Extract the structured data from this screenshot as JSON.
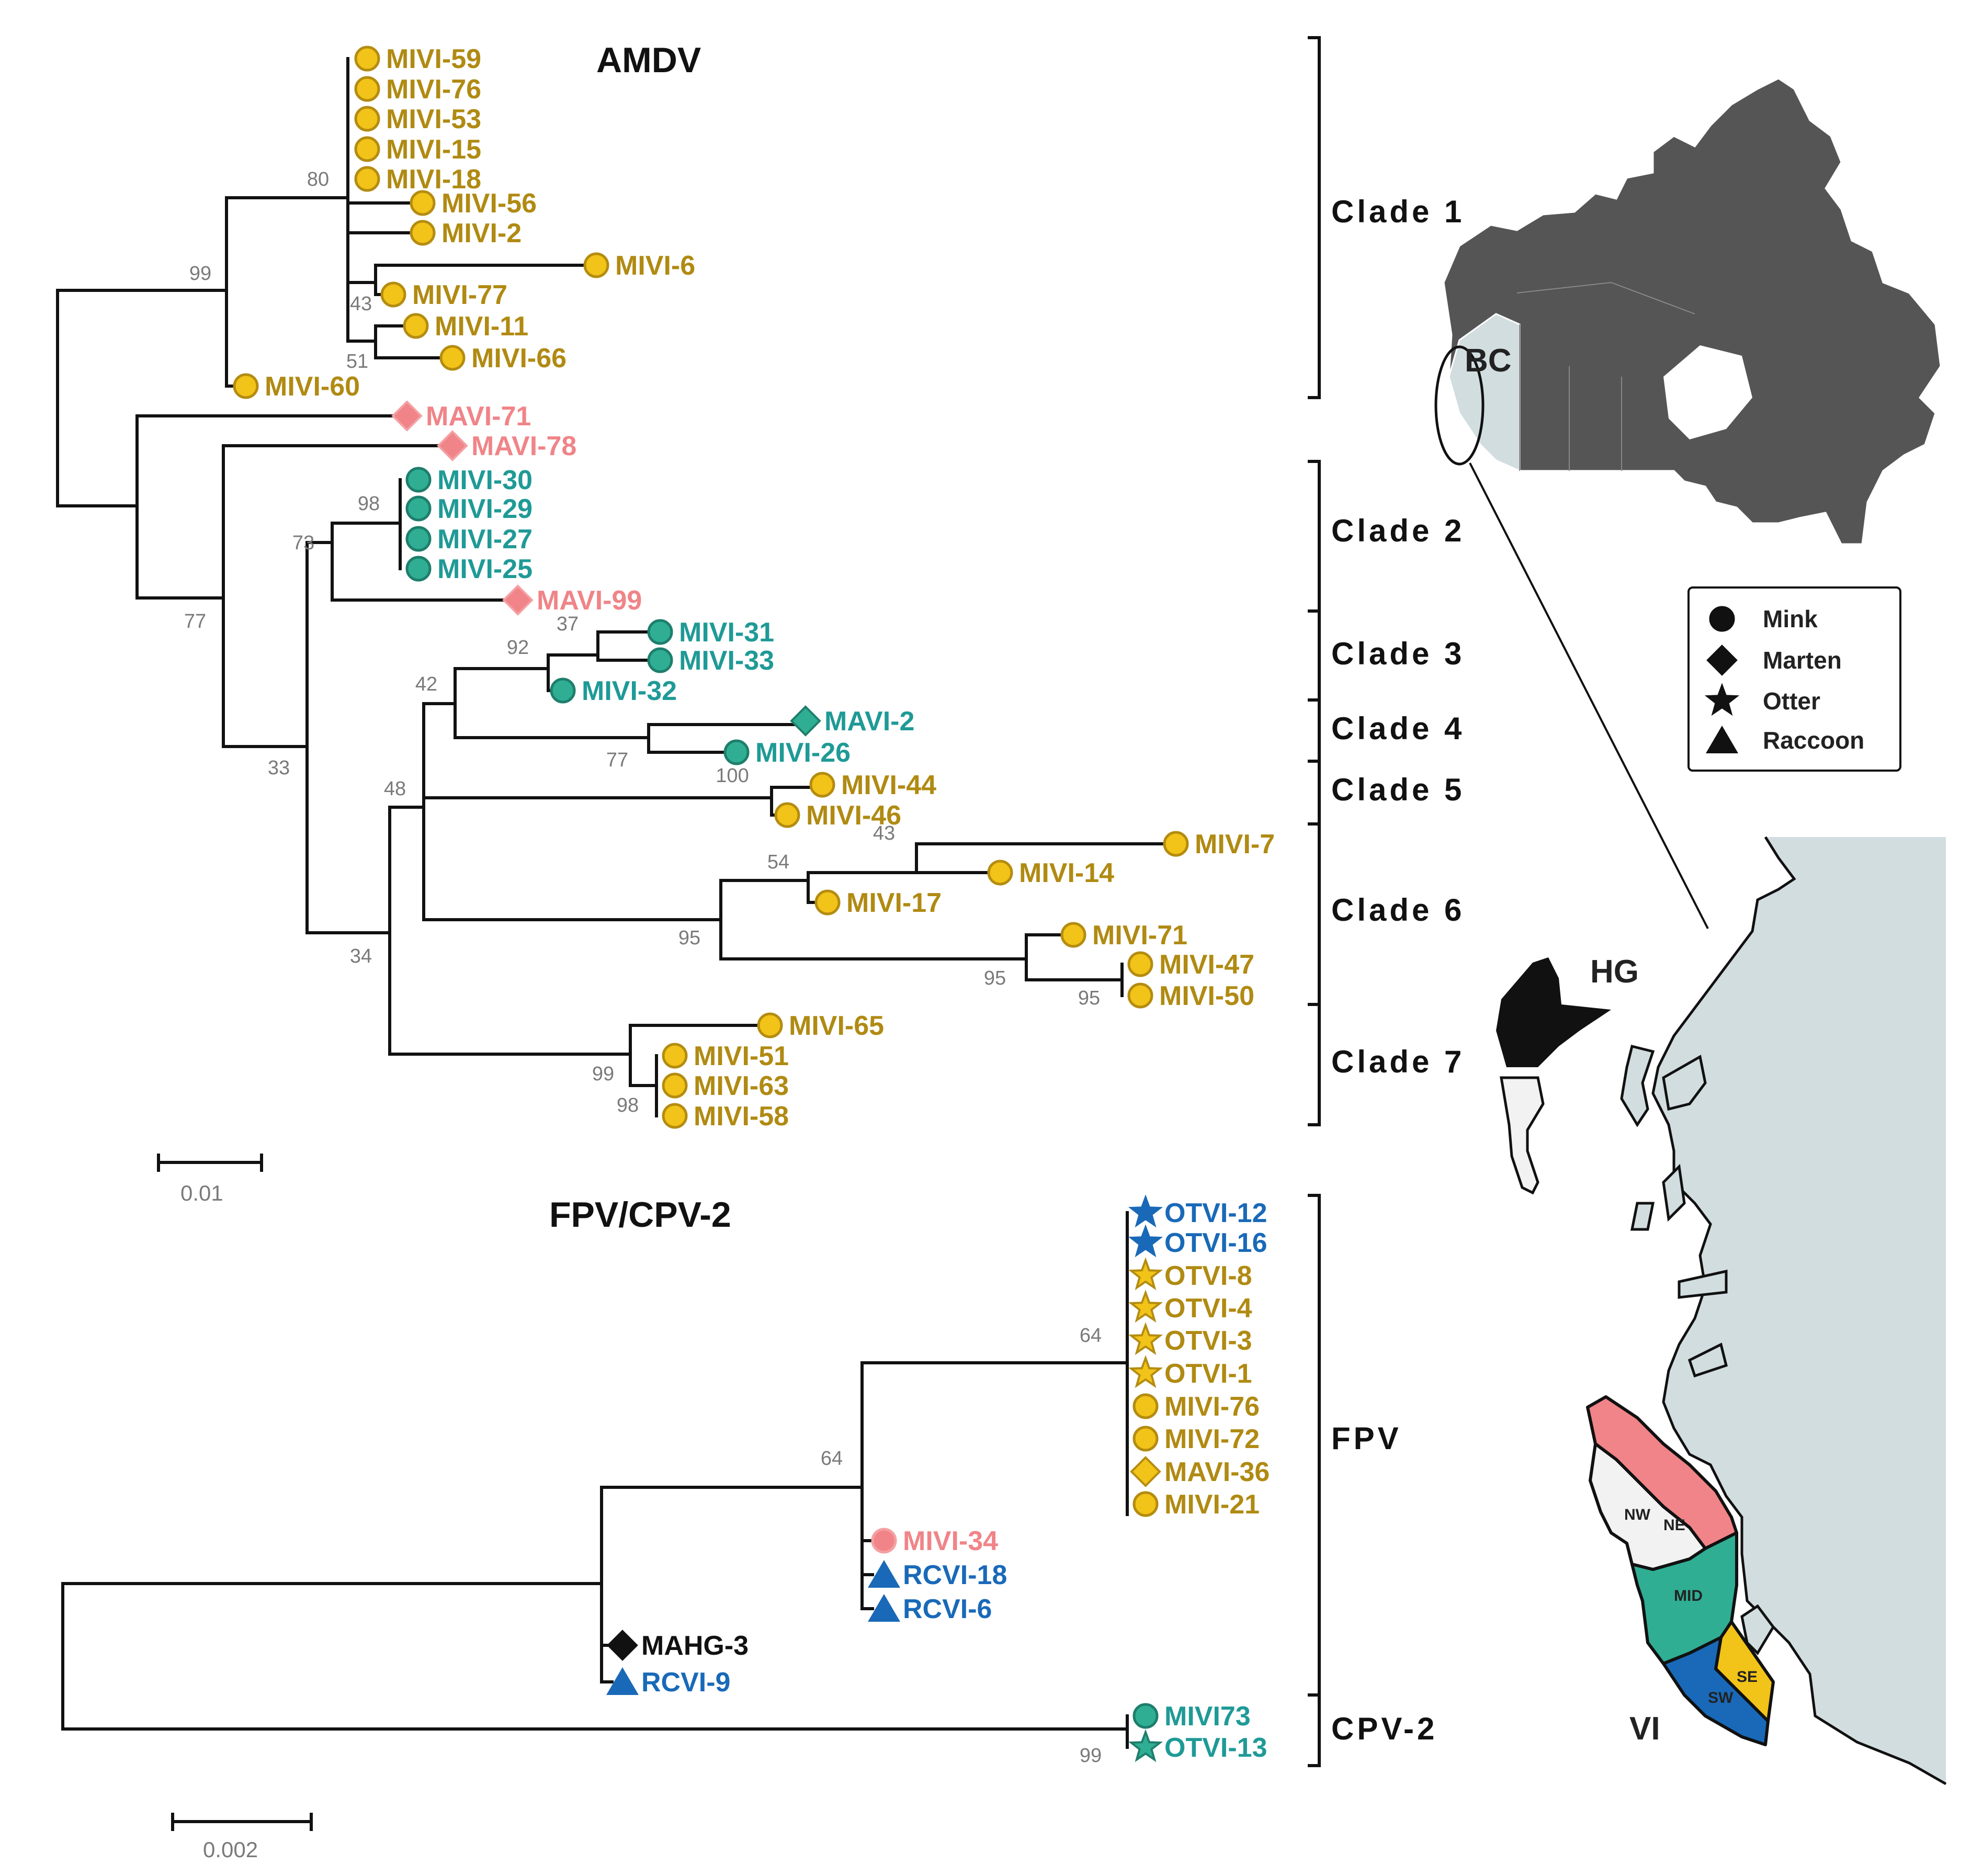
{
  "colors": {
    "yellow": "#f2c318",
    "yellow_text": "#b08a12",
    "teal": "#2fae94",
    "teal_text": "#1f9a96",
    "pink": "#f08488",
    "blue": "#1969b8",
    "black": "#111111",
    "sea": "#d2dde0",
    "land_dark": "#555555",
    "bc_light": "#d2dde0"
  },
  "amdv": {
    "title": "AMDV",
    "scale_label": "0.01",
    "tips": [
      {
        "label": "MIVI-59",
        "shape": "circle",
        "color": "yellow"
      },
      {
        "label": "MIVI-76",
        "shape": "circle",
        "color": "yellow"
      },
      {
        "label": "MIVI-53",
        "shape": "circle",
        "color": "yellow"
      },
      {
        "label": "MIVI-15",
        "shape": "circle",
        "color": "yellow"
      },
      {
        "label": "MIVI-18",
        "shape": "circle",
        "color": "yellow"
      },
      {
        "label": "MIVI-56",
        "shape": "circle",
        "color": "yellow"
      },
      {
        "label": "MIVI-2",
        "shape": "circle",
        "color": "yellow"
      },
      {
        "label": "MIVI-6",
        "shape": "circle",
        "color": "yellow"
      },
      {
        "label": "MIVI-77",
        "shape": "circle",
        "color": "yellow"
      },
      {
        "label": "MIVI-11",
        "shape": "circle",
        "color": "yellow"
      },
      {
        "label": "MIVI-66",
        "shape": "circle",
        "color": "yellow"
      },
      {
        "label": "MIVI-60",
        "shape": "circle",
        "color": "yellow"
      },
      {
        "label": "MAVI-71",
        "shape": "diamond",
        "color": "pink"
      },
      {
        "label": "MAVI-78",
        "shape": "diamond",
        "color": "pink"
      },
      {
        "label": "MIVI-30",
        "shape": "circle",
        "color": "teal"
      },
      {
        "label": "MIVI-29",
        "shape": "circle",
        "color": "teal"
      },
      {
        "label": "MIVI-27",
        "shape": "circle",
        "color": "teal"
      },
      {
        "label": "MIVI-25",
        "shape": "circle",
        "color": "teal"
      },
      {
        "label": "MAVI-99",
        "shape": "diamond",
        "color": "pink"
      },
      {
        "label": "MIVI-31",
        "shape": "circle",
        "color": "teal"
      },
      {
        "label": "MIVI-33",
        "shape": "circle",
        "color": "teal"
      },
      {
        "label": "MIVI-32",
        "shape": "circle",
        "color": "teal"
      },
      {
        "label": "MAVI-2",
        "shape": "diamond",
        "color": "teal"
      },
      {
        "label": "MIVI-26",
        "shape": "circle",
        "color": "teal"
      },
      {
        "label": "MIVI-44",
        "shape": "circle",
        "color": "yellow"
      },
      {
        "label": "MIVI-46",
        "shape": "circle",
        "color": "yellow"
      },
      {
        "label": "MIVI-7",
        "shape": "circle",
        "color": "yellow"
      },
      {
        "label": "MIVI-14",
        "shape": "circle",
        "color": "yellow"
      },
      {
        "label": "MIVI-17",
        "shape": "circle",
        "color": "yellow"
      },
      {
        "label": "MIVI-71",
        "shape": "circle",
        "color": "yellow"
      },
      {
        "label": "MIVI-47",
        "shape": "circle",
        "color": "yellow"
      },
      {
        "label": "MIVI-50",
        "shape": "circle",
        "color": "yellow"
      },
      {
        "label": "MIVI-65",
        "shape": "circle",
        "color": "yellow"
      },
      {
        "label": "MIVI-51",
        "shape": "circle",
        "color": "yellow"
      },
      {
        "label": "MIVI-63",
        "shape": "circle",
        "color": "yellow"
      },
      {
        "label": "MIVI-58",
        "shape": "circle",
        "color": "yellow"
      }
    ],
    "bootstrap": [
      "80",
      "99",
      "43",
      "51",
      "98",
      "73",
      "77",
      "37",
      "92",
      "42",
      "77",
      "100",
      "33",
      "48",
      "43",
      "54",
      "95",
      "95",
      "95",
      "34",
      "99",
      "98"
    ],
    "clades": [
      "Clade 1",
      "Clade 2",
      "Clade 3",
      "Clade 4",
      "Clade 5",
      "Clade 6",
      "Clade 7"
    ]
  },
  "fpv": {
    "title": "FPV/CPV-2",
    "scale_label": "0.002",
    "tips": [
      {
        "label": "OTVI-12",
        "shape": "star",
        "color": "blue"
      },
      {
        "label": "OTVI-16",
        "shape": "star",
        "color": "blue"
      },
      {
        "label": "OTVI-8",
        "shape": "star",
        "color": "yellow"
      },
      {
        "label": "OTVI-4",
        "shape": "star",
        "color": "yellow"
      },
      {
        "label": "OTVI-3",
        "shape": "star",
        "color": "yellow"
      },
      {
        "label": "OTVI-1",
        "shape": "star",
        "color": "yellow"
      },
      {
        "label": "MIVI-76",
        "shape": "circle",
        "color": "yellow"
      },
      {
        "label": "MIVI-72",
        "shape": "circle",
        "color": "yellow"
      },
      {
        "label": "MAVI-36",
        "shape": "diamond",
        "color": "yellow"
      },
      {
        "label": "MIVI-21",
        "shape": "circle",
        "color": "yellow"
      },
      {
        "label": "MIVI-34",
        "shape": "circle",
        "color": "pink"
      },
      {
        "label": "RCVI-18",
        "shape": "triangle",
        "color": "blue"
      },
      {
        "label": "RCVI-6",
        "shape": "triangle",
        "color": "blue"
      },
      {
        "label": "MAHG-3",
        "shape": "diamond",
        "color": "black"
      },
      {
        "label": "RCVI-9",
        "shape": "triangle",
        "color": "blue"
      },
      {
        "label": "MIVI73",
        "shape": "circle",
        "color": "teal"
      },
      {
        "label": "OTVI-13",
        "shape": "star",
        "color": "teal"
      }
    ],
    "bootstrap": [
      "64",
      "64",
      "99"
    ],
    "clades": [
      "FPV",
      "CPV-2"
    ]
  },
  "legend": {
    "items": [
      {
        "label": "Mink",
        "shape": "circle"
      },
      {
        "label": "Marten",
        "shape": "diamond"
      },
      {
        "label": "Otter",
        "shape": "star"
      },
      {
        "label": "Raccoon",
        "shape": "triangle"
      }
    ]
  },
  "map": {
    "bc_label": "BC",
    "hg_label": "HG",
    "vi_label": "VI",
    "regions": [
      "NW",
      "NE",
      "MID",
      "SE",
      "SW"
    ]
  }
}
